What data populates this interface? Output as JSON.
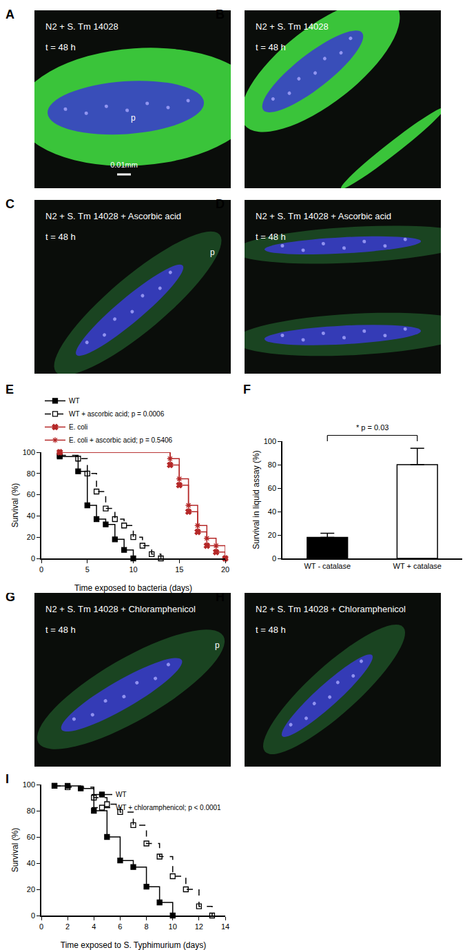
{
  "images": [
    {
      "panel": "A",
      "lines": [
        "N2 + S. Tm 14028",
        "t = 48 h"
      ],
      "marks": [
        "p"
      ],
      "scale_bar": "0.01mm",
      "color": "#3fd83f"
    },
    {
      "panel": "B",
      "lines": [
        "N2 + S. Tm 14028",
        "t = 48 h"
      ],
      "color": "#3fd83f"
    },
    {
      "panel": "C",
      "lines": [
        "N2 + S. Tm 14028 + Ascorbic acid",
        "t = 48 h"
      ],
      "marks": [
        "p"
      ],
      "color": "#1c4a24"
    },
    {
      "panel": "D",
      "lines": [
        "N2 + S. Tm 14028 + Ascorbic acid",
        "t = 48 h"
      ],
      "color": "#1c4a24"
    },
    {
      "panel": "G",
      "lines": [
        "N2 + S. Tm 14028 + Chloramphenicol",
        "t = 48 h"
      ],
      "marks": [
        "p"
      ],
      "color": "#1c4a24"
    },
    {
      "panel": "H",
      "lines": [
        "N2 + S. Tm 14028 + Chloramphenicol",
        "t = 48 h"
      ],
      "color": "#1c4a24"
    }
  ],
  "chart_data": [
    {
      "panel": "E",
      "type": "line",
      "x_label": "Time exposed to bacteria (days)",
      "y_label": "Survival (%)",
      "xlim": [
        0,
        20
      ],
      "xticks": [
        0,
        5,
        10,
        15,
        20
      ],
      "ylim": [
        0,
        100
      ],
      "yticks": [
        0,
        20,
        40,
        60,
        80,
        100
      ],
      "grid": false,
      "legend": "top left",
      "series": [
        {
          "name": "WT",
          "color": "#000000",
          "marker": "square",
          "line_style": "solid",
          "x": [
            2,
            4,
            5,
            6,
            7,
            8,
            9,
            10
          ],
          "values": [
            96,
            82,
            50,
            37,
            32,
            18,
            8,
            0
          ]
        },
        {
          "name": "WT + ascorbic acid; p = 0.0006",
          "color": "#000000",
          "marker": "square-open",
          "line_style": "dashed",
          "x": [
            2,
            4,
            5,
            6,
            7,
            8,
            9,
            10,
            11,
            12,
            13
          ],
          "values": [
            97,
            94,
            80,
            63,
            47,
            37,
            31,
            20,
            12,
            4,
            0
          ]
        },
        {
          "name": "E. coli",
          "color": "#b52828",
          "marker": "x",
          "line_style": "solid",
          "x": [
            2,
            14,
            15,
            16,
            17,
            18,
            19,
            20
          ],
          "values": [
            100,
            88,
            69,
            44,
            25,
            12,
            6,
            0
          ]
        },
        {
          "name": "E. coli + ascorbic acid; p = 0.5406",
          "color": "#b52828",
          "marker": "asterisk-open",
          "line_style": "solid",
          "x": [
            2,
            14,
            15,
            16,
            17,
            18,
            19,
            20
          ],
          "values": [
            100,
            94,
            75,
            50,
            31,
            19,
            12,
            0
          ]
        }
      ]
    },
    {
      "panel": "F",
      "type": "bar",
      "y_label": "Survival in liquid assay (%)",
      "categories": [
        "WT - catalase",
        "WT + catalase"
      ],
      "values": [
        18,
        80
      ],
      "errors": [
        3.5,
        14
      ],
      "colors": [
        "#000000",
        "#000000"
      ],
      "ylim": [
        0,
        100
      ],
      "yticks": [
        0,
        20,
        40,
        60,
        80,
        100
      ],
      "grid": false,
      "annotation": "* p = 0.03"
    },
    {
      "panel": "I",
      "type": "line",
      "x_label": "Time exposed to S. Typhimurium (days)",
      "y_label": "Survival (%)",
      "xlim": [
        0,
        14
      ],
      "xticks": [
        0,
        2,
        4,
        6,
        8,
        10,
        12,
        14
      ],
      "ylim": [
        0,
        100
      ],
      "yticks": [
        0,
        20,
        40,
        60,
        80,
        100
      ],
      "grid": false,
      "legend": "top right",
      "series": [
        {
          "name": "WT",
          "color": "#000000",
          "marker": "square",
          "line_style": "solid",
          "x": [
            1,
            2,
            3,
            4,
            5,
            6,
            7,
            8,
            9,
            10
          ],
          "values": [
            99,
            99,
            97,
            80,
            60,
            42,
            37,
            22,
            10,
            0
          ]
        },
        {
          "name": "WT + chloramphenicol; p < 0.0001",
          "color": "#000000",
          "marker": "square-open",
          "line_style": "dashed",
          "x": [
            1,
            2,
            4,
            5,
            6,
            7,
            8,
            9,
            10,
            11,
            12,
            13
          ],
          "values": [
            99,
            98,
            90,
            85,
            79,
            69,
            55,
            45,
            30,
            20,
            7,
            0
          ]
        }
      ]
    }
  ]
}
